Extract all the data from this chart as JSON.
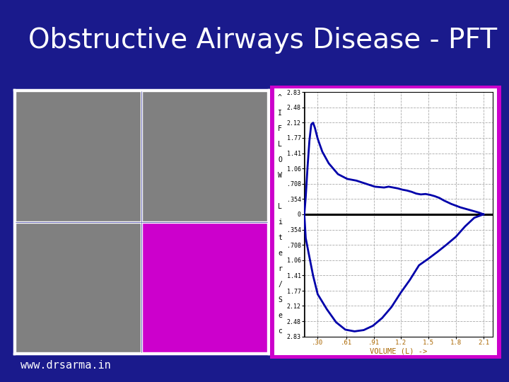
{
  "title": "Obstructive Airways Disease - PFT",
  "title_color": "#ffffff",
  "title_fontsize": 28,
  "bg_color": "#1a1a8c",
  "watermark": "www.drsarma.in",
  "watermark_color": "#ffffff",
  "watermark_fontsize": 11,
  "grid_colors": {
    "top_left": "#808080",
    "top_right": "#808080",
    "bottom_left": "#808080",
    "bottom_right": "#cc00cc"
  },
  "grid_border_color": "#ffffff",
  "flow_volume_border_color": "#cc00cc",
  "flow_volume_bg": "#ffffff",
  "plot_line_color": "#0000aa",
  "xlabel_text": "VOLUME (L) ->",
  "xlabel_color": "#aa6600",
  "ytick_vals": [
    2.83,
    2.48,
    2.12,
    1.77,
    1.41,
    1.06,
    0.708,
    0.354,
    0,
    -0.354,
    -0.708,
    -1.06,
    -1.41,
    -1.77,
    -2.12,
    -2.48,
    -2.83
  ],
  "ytick_labels": [
    "2.83",
    "2.48",
    "2.12",
    "1.77",
    "1.41",
    "1.06",
    ".708",
    ".354",
    "0",
    ".354",
    ".708",
    "1.06",
    "1.41",
    "1.77",
    "2.12",
    "2.48",
    "2.83"
  ],
  "xtick_vals": [
    0.3,
    0.61,
    0.91,
    1.2,
    1.5,
    1.8,
    2.1
  ],
  "xtick_labels": [
    ".30",
    ".61",
    ".91",
    "1.2",
    "1.5",
    "1.8",
    "2.1"
  ],
  "ylim": [
    -2.83,
    2.83
  ],
  "xlim": [
    0.15,
    2.2
  ],
  "ylabel_chars": [
    "^",
    "I",
    "F",
    "L",
    "O",
    "W",
    " ",
    "L",
    "i",
    "t",
    "e",
    "r",
    "/",
    "S",
    "e",
    "c"
  ],
  "exp_x": [
    0.155,
    0.17,
    0.19,
    0.21,
    0.23,
    0.25,
    0.27,
    0.3,
    0.35,
    0.42,
    0.52,
    0.62,
    0.72,
    0.82,
    0.92,
    1.02,
    1.07,
    1.12,
    1.17,
    1.22,
    1.27,
    1.32,
    1.37,
    1.42,
    1.47,
    1.52,
    1.57,
    1.62,
    1.67,
    1.75,
    1.85,
    1.95,
    2.05,
    2.1
  ],
  "exp_y": [
    0.0,
    0.4,
    1.1,
    1.7,
    2.08,
    2.12,
    2.0,
    1.75,
    1.45,
    1.18,
    0.93,
    0.82,
    0.78,
    0.71,
    0.64,
    0.62,
    0.64,
    0.62,
    0.6,
    0.57,
    0.55,
    0.52,
    0.48,
    0.46,
    0.47,
    0.45,
    0.42,
    0.38,
    0.32,
    0.24,
    0.16,
    0.1,
    0.04,
    0.0
  ],
  "insp_x": [
    2.1,
    2.0,
    1.9,
    1.8,
    1.7,
    1.6,
    1.5,
    1.4,
    1.3,
    1.2,
    1.1,
    1.0,
    0.9,
    0.8,
    0.7,
    0.6,
    0.5,
    0.4,
    0.3,
    0.25,
    0.2,
    0.17,
    0.155
  ],
  "insp_y": [
    0.0,
    -0.08,
    -0.28,
    -0.52,
    -0.7,
    -0.87,
    -1.03,
    -1.18,
    -1.52,
    -1.82,
    -2.15,
    -2.4,
    -2.58,
    -2.68,
    -2.71,
    -2.67,
    -2.5,
    -2.2,
    -1.85,
    -1.42,
    -0.88,
    -0.55,
    0.0
  ]
}
